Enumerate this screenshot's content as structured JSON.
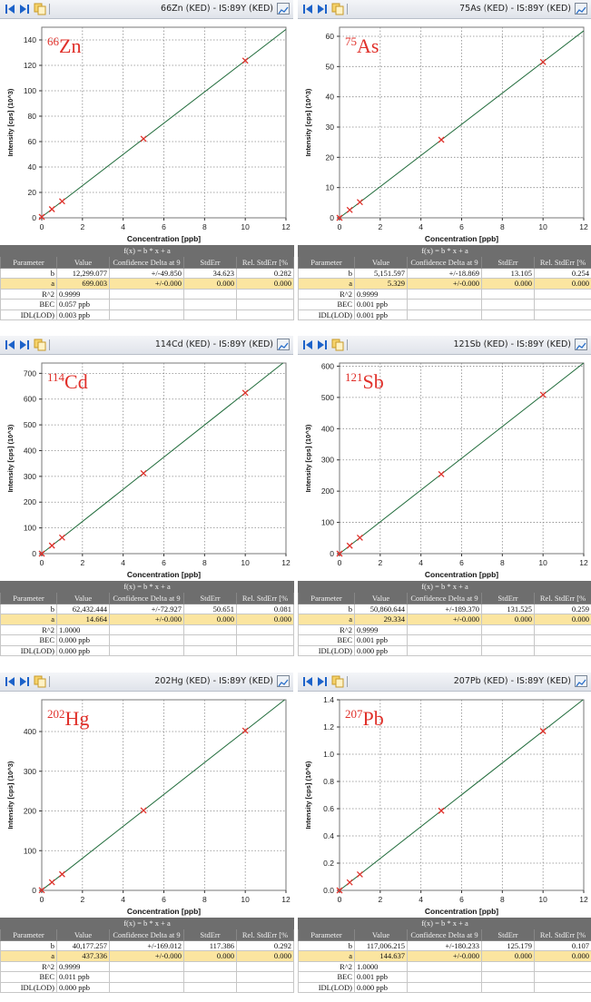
{
  "toolbar": {
    "icons": [
      "first-page-icon",
      "next-page-icon",
      "copy-icon",
      "graph-view-icon"
    ]
  },
  "table_header": {
    "formula": "f(x) = b * x + a",
    "columns": [
      "Parameter",
      "Value",
      "Confidence Delta at 9",
      "StdErr",
      "Rel. StdErr [%"
    ]
  },
  "colors": {
    "line": "#1f6b3a",
    "point": "#e0302a",
    "label": "#e0302a",
    "grid": "#8a8a8a",
    "header_bg": "#6e6e6e",
    "highlight_row": "#fbe5a0"
  },
  "panels": [
    {
      "title": "66Zn (KED) - IS:89Y (KED)",
      "mass": "66",
      "element": "Zn",
      "params": {
        "b": {
          "label": "b",
          "value": "12,299.077",
          "conf": "+/-49.850",
          "stderr": "34.623",
          "rel": "0.282"
        },
        "a": {
          "label": "a",
          "value": "699.003",
          "conf": "+/-0.000",
          "stderr": "0.000",
          "rel": "0.000"
        },
        "r2": {
          "label": "R^2",
          "value": "0.9999"
        },
        "bec": {
          "label": "BEC",
          "value": "0.057 ppb"
        },
        "idl": {
          "label": "IDL(LOD)",
          "value": "0.003 ppb"
        }
      }
    },
    {
      "title": "75As (KED) - IS:89Y (KED)",
      "mass": "75",
      "element": "As",
      "params": {
        "b": {
          "label": "b",
          "value": "5,151.597",
          "conf": "+/-18.869",
          "stderr": "13.105",
          "rel": "0.254"
        },
        "a": {
          "label": "a",
          "value": "5.329",
          "conf": "+/-0.000",
          "stderr": "0.000",
          "rel": "0.000"
        },
        "r2": {
          "label": "R^2",
          "value": "0.9999"
        },
        "bec": {
          "label": "BEC",
          "value": "0.001 ppb"
        },
        "idl": {
          "label": "IDL(LOD)",
          "value": "0.001 ppb"
        }
      }
    },
    {
      "title": "114Cd (KED) - IS:89Y (KED)",
      "mass": "114",
      "element": "Cd",
      "params": {
        "b": {
          "label": "b",
          "value": "62,432.444",
          "conf": "+/-72.927",
          "stderr": "50.651",
          "rel": "0.081"
        },
        "a": {
          "label": "a",
          "value": "14.664",
          "conf": "+/-0.000",
          "stderr": "0.000",
          "rel": "0.000"
        },
        "r2": {
          "label": "R^2",
          "value": "1.0000"
        },
        "bec": {
          "label": "BEC",
          "value": "0.000 ppb"
        },
        "idl": {
          "label": "IDL(LOD)",
          "value": "0.000 ppb"
        }
      }
    },
    {
      "title": "121Sb (KED) - IS:89Y (KED)",
      "mass": "121",
      "element": "Sb",
      "params": {
        "b": {
          "label": "b",
          "value": "50,860.644",
          "conf": "+/-189.370",
          "stderr": "131.525",
          "rel": "0.259"
        },
        "a": {
          "label": "a",
          "value": "29.334",
          "conf": "+/-0.000",
          "stderr": "0.000",
          "rel": "0.000"
        },
        "r2": {
          "label": "R^2",
          "value": "0.9999"
        },
        "bec": {
          "label": "BEC",
          "value": "0.001 ppb"
        },
        "idl": {
          "label": "IDL(LOD)",
          "value": "0.000 ppb"
        }
      }
    },
    {
      "title": "202Hg (KED) - IS:89Y (KED)",
      "mass": "202",
      "element": "Hg",
      "params": {
        "b": {
          "label": "b",
          "value": "40,177.257",
          "conf": "+/-169.012",
          "stderr": "117.386",
          "rel": "0.292"
        },
        "a": {
          "label": "a",
          "value": "437.336",
          "conf": "+/-0.000",
          "stderr": "0.000",
          "rel": "0.000"
        },
        "r2": {
          "label": "R^2",
          "value": "0.9999"
        },
        "bec": {
          "label": "BEC",
          "value": "0.011 ppb"
        },
        "idl": {
          "label": "IDL(LOD)",
          "value": "0.000 ppb"
        }
      }
    },
    {
      "title": "207Pb (KED) - IS:89Y (KED)",
      "mass": "207",
      "element": "Pb",
      "params": {
        "b": {
          "label": "b",
          "value": "117,006.215",
          "conf": "+/-180.233",
          "stderr": "125.179",
          "rel": "0.107"
        },
        "a": {
          "label": "a",
          "value": "144.637",
          "conf": "+/-0.000",
          "stderr": "0.000",
          "rel": "0.000"
        },
        "r2": {
          "label": "R^2",
          "value": "1.0000"
        },
        "bec": {
          "label": "BEC",
          "value": "0.001 ppb"
        },
        "idl": {
          "label": "IDL(LOD)",
          "value": "0.000 ppb"
        }
      }
    }
  ],
  "chart_data": [
    {
      "type": "line",
      "title": "66Zn",
      "xlabel": "Concentration [ppb]",
      "ylabel": "Intensity [cps] (10^3)",
      "xlim": [
        0,
        12
      ],
      "ylim": [
        0,
        150
      ],
      "grid": true,
      "xticks": [
        "0",
        "2",
        "4",
        "6",
        "8",
        "10",
        "12"
      ],
      "yticks": [
        "0",
        "20",
        "40",
        "60",
        "80",
        "100",
        "120",
        "140"
      ],
      "x": [
        0,
        0.5,
        1,
        5,
        10
      ],
      "y": [
        0.7,
        6.8,
        13.0,
        62.2,
        123.7
      ],
      "fit": {
        "b": 12.299077,
        "a": 0.699
      }
    },
    {
      "type": "line",
      "title": "75As",
      "xlabel": "Concentration [ppb]",
      "ylabel": "Intensity [cps] (10^3)",
      "xlim": [
        0,
        12
      ],
      "ylim": [
        0,
        63
      ],
      "grid": true,
      "xticks": [
        "0",
        "2",
        "4",
        "6",
        "8",
        "10",
        "12"
      ],
      "yticks": [
        "0",
        "10",
        "20",
        "30",
        "40",
        "50",
        "60"
      ],
      "x": [
        0,
        0.5,
        1,
        5,
        10
      ],
      "y": [
        0,
        2.6,
        5.2,
        25.8,
        51.5
      ],
      "fit": {
        "b": 5.151597,
        "a": 0.005
      }
    },
    {
      "type": "line",
      "title": "114Cd",
      "xlabel": "Concentration [ppb]",
      "ylabel": "Intensity [cps] (10^3)",
      "xlim": [
        0,
        12
      ],
      "ylim": [
        0,
        740
      ],
      "grid": true,
      "xticks": [
        "0",
        "2",
        "4",
        "6",
        "8",
        "10",
        "12"
      ],
      "yticks": [
        "0",
        "100",
        "200",
        "300",
        "400",
        "500",
        "600",
        "700"
      ],
      "x": [
        0,
        0.5,
        1,
        5,
        10
      ],
      "y": [
        0,
        31.2,
        62.4,
        312.2,
        624.3
      ],
      "fit": {
        "b": 62.432444,
        "a": 0.0147
      }
    },
    {
      "type": "line",
      "title": "121Sb",
      "xlabel": "Concentration [ppb]",
      "ylabel": "Intensity [cps] (10^3)",
      "xlim": [
        0,
        12
      ],
      "ylim": [
        0,
        610
      ],
      "grid": true,
      "xticks": [
        "0",
        "2",
        "4",
        "6",
        "8",
        "10",
        "12"
      ],
      "yticks": [
        "0",
        "100",
        "200",
        "300",
        "400",
        "500",
        "600"
      ],
      "x": [
        0,
        0.5,
        1,
        5,
        10
      ],
      "y": [
        0,
        25.4,
        50.9,
        254.3,
        508.6
      ],
      "fit": {
        "b": 50.860644,
        "a": 0.0293
      }
    },
    {
      "type": "line",
      "title": "202Hg",
      "xlabel": "Concentration [ppb]",
      "ylabel": "Intensity [cps] (10^3)",
      "xlim": [
        0,
        12
      ],
      "ylim": [
        0,
        480
      ],
      "grid": true,
      "xticks": [
        "0",
        "2",
        "4",
        "6",
        "8",
        "10",
        "12"
      ],
      "yticks": [
        "0",
        "100",
        "200",
        "300",
        "400"
      ],
      "x": [
        0,
        0.5,
        1,
        5,
        10
      ],
      "y": [
        0.4,
        20.5,
        40.6,
        201.3,
        402.2
      ],
      "fit": {
        "b": 40.177257,
        "a": 0.437
      }
    },
    {
      "type": "line",
      "title": "207Pb",
      "xlabel": "Concentration [ppb]",
      "ylabel": "Intensity [cps] (10^6)",
      "xlim": [
        0,
        12
      ],
      "ylim": [
        0,
        1.4
      ],
      "grid": true,
      "xticks": [
        "0",
        "2",
        "4",
        "6",
        "8",
        "10",
        "12"
      ],
      "yticks": [
        "0.0",
        "0.2",
        "0.4",
        "0.6",
        "0.8",
        "1.0",
        "1.2",
        "1.4"
      ],
      "x": [
        0,
        0.5,
        1,
        5,
        10
      ],
      "y": [
        0.0001,
        0.0586,
        0.117,
        0.585,
        1.17
      ],
      "fit": {
        "b": 0.117006,
        "a": 0.0001
      }
    }
  ]
}
